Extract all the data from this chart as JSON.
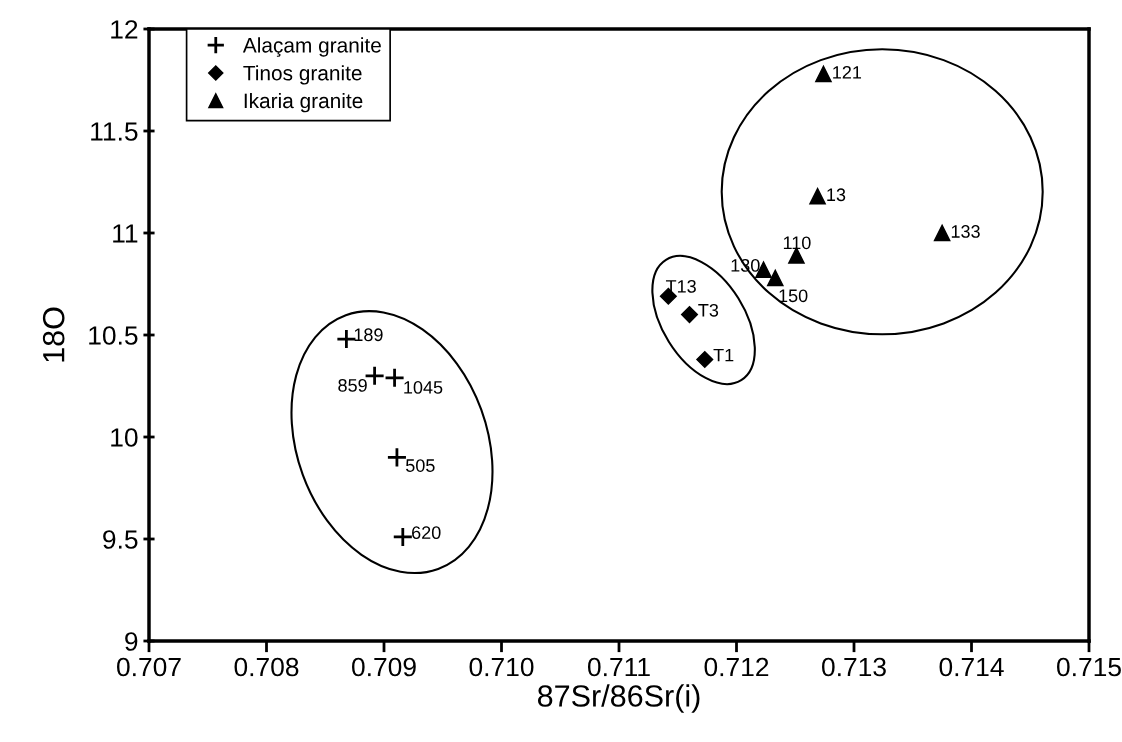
{
  "chart_data": {
    "type": "scatter",
    "xlabel": "87Sr/86Sr(i)",
    "ylabel": "18O",
    "xlim": [
      0.707,
      0.715
    ],
    "xticks": [
      {
        "value": 0.707,
        "label": "0.707"
      },
      {
        "value": 0.708,
        "label": "0.708"
      },
      {
        "value": 0.709,
        "label": "0.709"
      },
      {
        "value": 0.71,
        "label": "0.710"
      },
      {
        "value": 0.711,
        "label": "0.711"
      },
      {
        "value": 0.712,
        "label": "0.712"
      },
      {
        "value": 0.713,
        "label": "0.713"
      },
      {
        "value": 0.714,
        "label": "0.714"
      },
      {
        "value": 0.715,
        "label": "0.715"
      }
    ],
    "ylim": [
      9,
      12
    ],
    "yticks": [
      9,
      9.5,
      10,
      10.5,
      11,
      11.5,
      12
    ],
    "grid": false,
    "legend": "top left",
    "series": [
      {
        "name": "Alaçam granite",
        "color": "#000000",
        "marker": "cross",
        "x": [
          0.70868,
          0.70892,
          0.70909,
          0.70911,
          0.70916
        ],
        "values": [
          10.48,
          10.3,
          10.29,
          9.9,
          9.51
        ]
      },
      {
        "name": "Tinos granite",
        "color": "#000000",
        "marker": "diamond",
        "x": [
          0.71142,
          0.7116,
          0.71173
        ],
        "values": [
          10.69,
          10.6,
          10.38
        ]
      },
      {
        "name": "Ikaria granite",
        "color": "#000000",
        "marker": "triangle",
        "x": [
          0.71274,
          0.71269,
          0.71375,
          0.71251,
          0.71223,
          0.71233
        ],
        "values": [
          11.78,
          11.18,
          11.0,
          10.89,
          10.82,
          10.78
        ]
      }
    ],
    "annotations": [
      {
        "text": "189",
        "x": 0.70868,
        "y": 10.48
      },
      {
        "text": "859",
        "x": 0.70892,
        "y": 10.3
      },
      {
        "text": "1045",
        "x": 0.70909,
        "y": 10.29
      },
      {
        "text": "505",
        "x": 0.70911,
        "y": 9.9
      },
      {
        "text": "620",
        "x": 0.70916,
        "y": 9.51
      },
      {
        "text": "T13",
        "x": 0.71142,
        "y": 10.69
      },
      {
        "text": "T3",
        "x": 0.7116,
        "y": 10.6
      },
      {
        "text": "T1",
        "x": 0.71173,
        "y": 10.38
      },
      {
        "text": "121",
        "x": 0.71274,
        "y": 11.78
      },
      {
        "text": "13",
        "x": 0.71269,
        "y": 11.18
      },
      {
        "text": "133",
        "x": 0.71375,
        "y": 11.0
      },
      {
        "text": "110",
        "x": 0.71251,
        "y": 10.89
      },
      {
        "text": "130",
        "x": 0.71223,
        "y": 10.82
      },
      {
        "text": "150",
        "x": 0.71233,
        "y": 10.78
      }
    ]
  }
}
